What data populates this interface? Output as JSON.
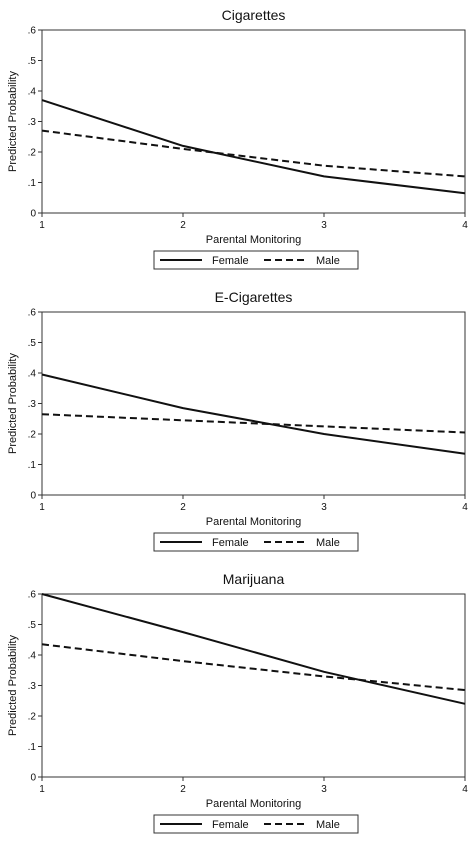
{
  "chart_data": [
    {
      "type": "line",
      "title": "Cigarettes",
      "xlabel": "Parental Monitoring",
      "ylabel": "Predicted Probability",
      "x": [
        1,
        2,
        3,
        4
      ],
      "xticks": [
        "1",
        "2",
        "3",
        "4"
      ],
      "yticks": [
        "0",
        ".1",
        ".2",
        ".3",
        ".4",
        ".5",
        ".6"
      ],
      "ylim": [
        0,
        0.6
      ],
      "grid": false,
      "legend_position": "bottom",
      "series": [
        {
          "name": "Female",
          "style": "solid",
          "values": [
            0.37,
            0.22,
            0.12,
            0.065
          ]
        },
        {
          "name": "Male",
          "style": "dashed",
          "values": [
            0.27,
            0.21,
            0.155,
            0.12
          ]
        }
      ]
    },
    {
      "type": "line",
      "title": "E-Cigarettes",
      "xlabel": "Parental Monitoring",
      "ylabel": "Predicted Probability",
      "x": [
        1,
        2,
        3,
        4
      ],
      "xticks": [
        "1",
        "2",
        "3",
        "4"
      ],
      "yticks": [
        "0",
        ".1",
        ".2",
        ".3",
        ".4",
        ".5",
        ".6"
      ],
      "ylim": [
        0,
        0.6
      ],
      "grid": false,
      "legend_position": "bottom",
      "series": [
        {
          "name": "Female",
          "style": "solid",
          "values": [
            0.395,
            0.285,
            0.2,
            0.135
          ]
        },
        {
          "name": "Male",
          "style": "dashed",
          "values": [
            0.265,
            0.245,
            0.225,
            0.205
          ]
        }
      ]
    },
    {
      "type": "line",
      "title": "Marijuana",
      "xlabel": "Parental Monitoring",
      "ylabel": "Predicted Probability",
      "x": [
        1,
        2,
        3,
        4
      ],
      "xticks": [
        "1",
        "2",
        "3",
        "4"
      ],
      "yticks": [
        "0",
        ".1",
        ".2",
        ".3",
        ".4",
        ".5",
        ".6"
      ],
      "ylim": [
        0,
        0.6
      ],
      "grid": false,
      "legend_position": "bottom",
      "series": [
        {
          "name": "Female",
          "style": "solid",
          "values": [
            0.6,
            0.475,
            0.345,
            0.24
          ]
        },
        {
          "name": "Male",
          "style": "dashed",
          "values": [
            0.435,
            0.38,
            0.33,
            0.285
          ]
        }
      ]
    }
  ],
  "colors": {
    "line": "#111111",
    "background": "#ffffff"
  }
}
